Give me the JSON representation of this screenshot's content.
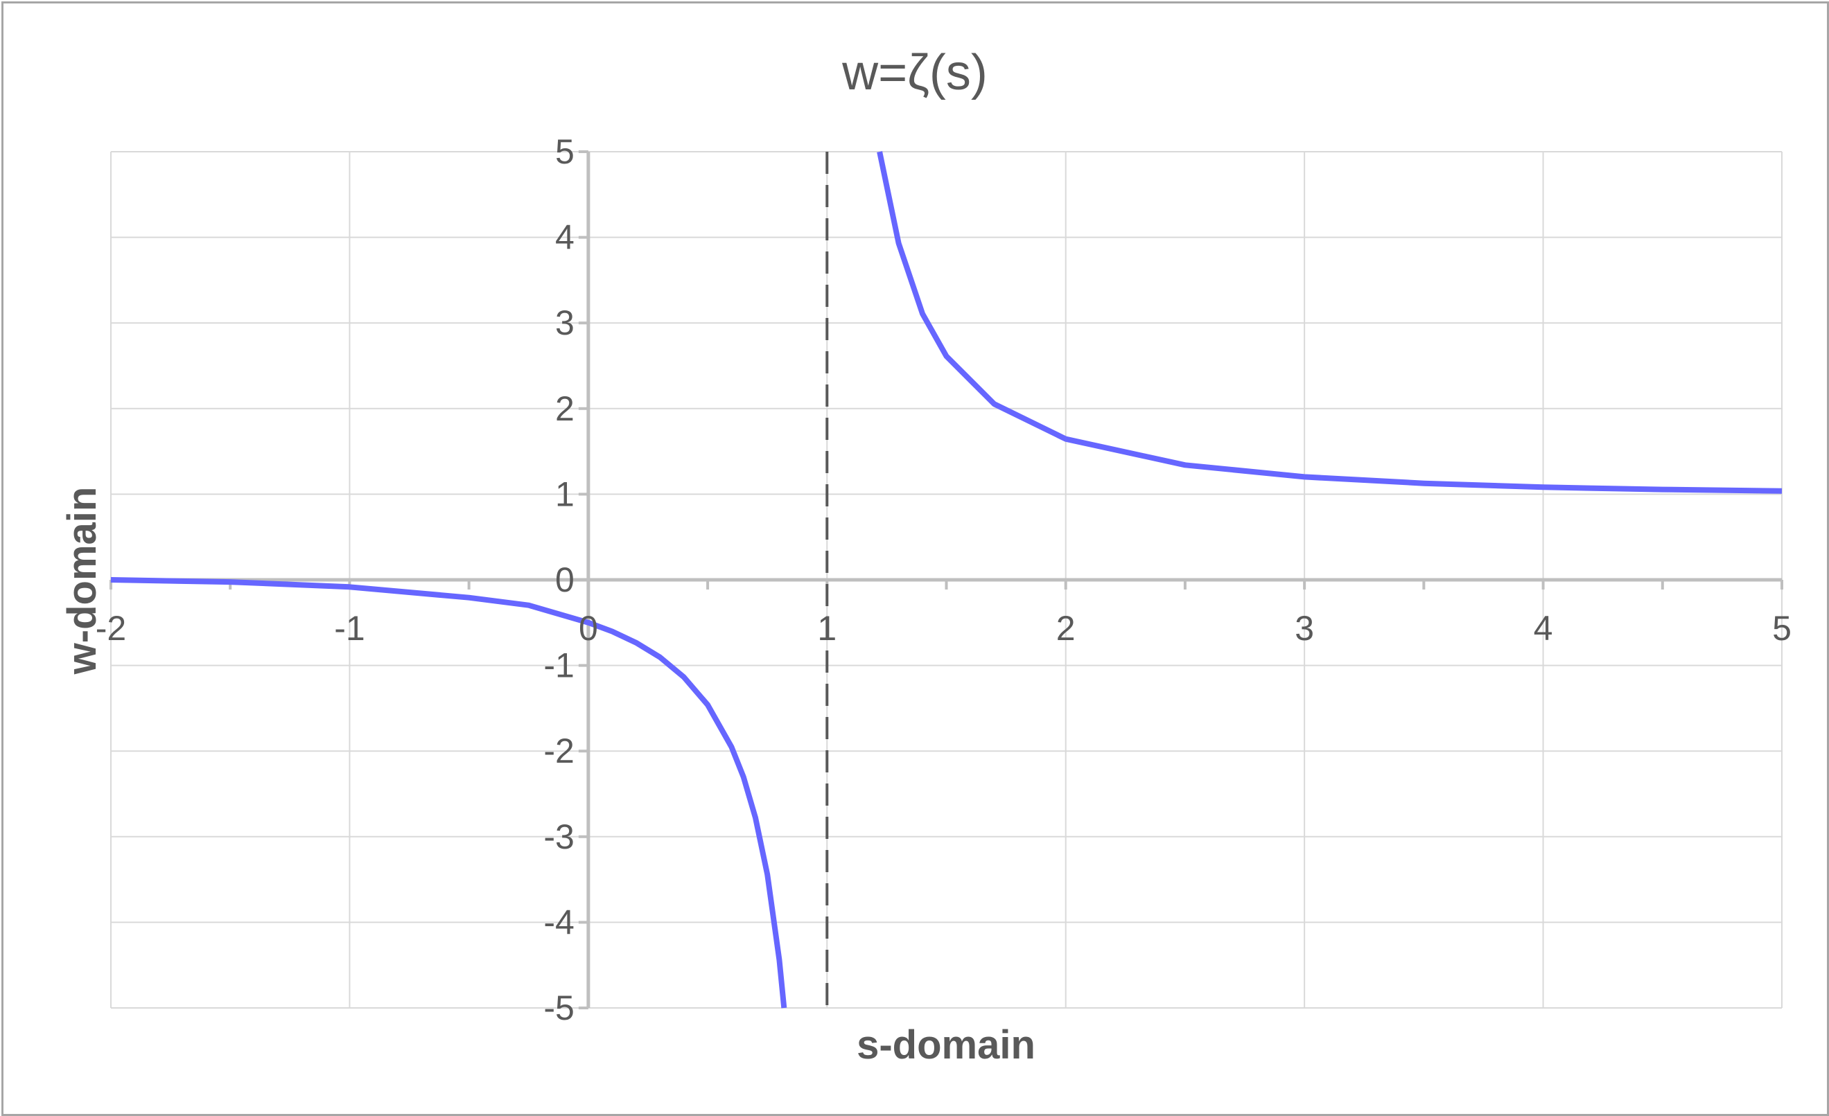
{
  "chart_data": {
    "type": "line",
    "title": "w=ζ(s)",
    "xlabel": "s-domain",
    "ylabel": "w-domain",
    "xlim": [
      -2,
      5
    ],
    "ylim": [
      -5,
      5
    ],
    "x_ticks": [
      "-2",
      "-1",
      "0",
      "1",
      "2",
      "3",
      "4",
      "5"
    ],
    "y_ticks": [
      "5",
      "4",
      "3",
      "2",
      "1",
      "0",
      "-1",
      "-2",
      "-3",
      "-4",
      "-5"
    ],
    "grid": true,
    "asymptote": {
      "x": 1,
      "style": "dashed",
      "color": "#595959"
    },
    "series": [
      {
        "color": "#6666ff",
        "branch": "left",
        "x": [
          -2,
          -1.5,
          -1,
          -0.5,
          -0.25,
          0,
          0.1,
          0.2,
          0.3,
          0.4,
          0.5,
          0.6,
          0.65,
          0.7,
          0.75,
          0.8,
          0.82
        ],
        "y": [
          0,
          -0.025,
          -0.083,
          -0.208,
          -0.297,
          -0.5,
          -0.603,
          -0.734,
          -0.904,
          -1.135,
          -1.46,
          -1.953,
          -2.302,
          -2.778,
          -3.441,
          -4.437,
          -5.0
        ]
      },
      {
        "color": "#6666ff",
        "branch": "right",
        "x": [
          1.22,
          1.3,
          1.4,
          1.5,
          1.7,
          2,
          2.5,
          3,
          3.5,
          4,
          4.5,
          5
        ],
        "y": [
          5.0,
          3.931,
          3.106,
          2.612,
          2.054,
          1.645,
          1.341,
          1.202,
          1.127,
          1.082,
          1.055,
          1.037
        ]
      }
    ]
  }
}
